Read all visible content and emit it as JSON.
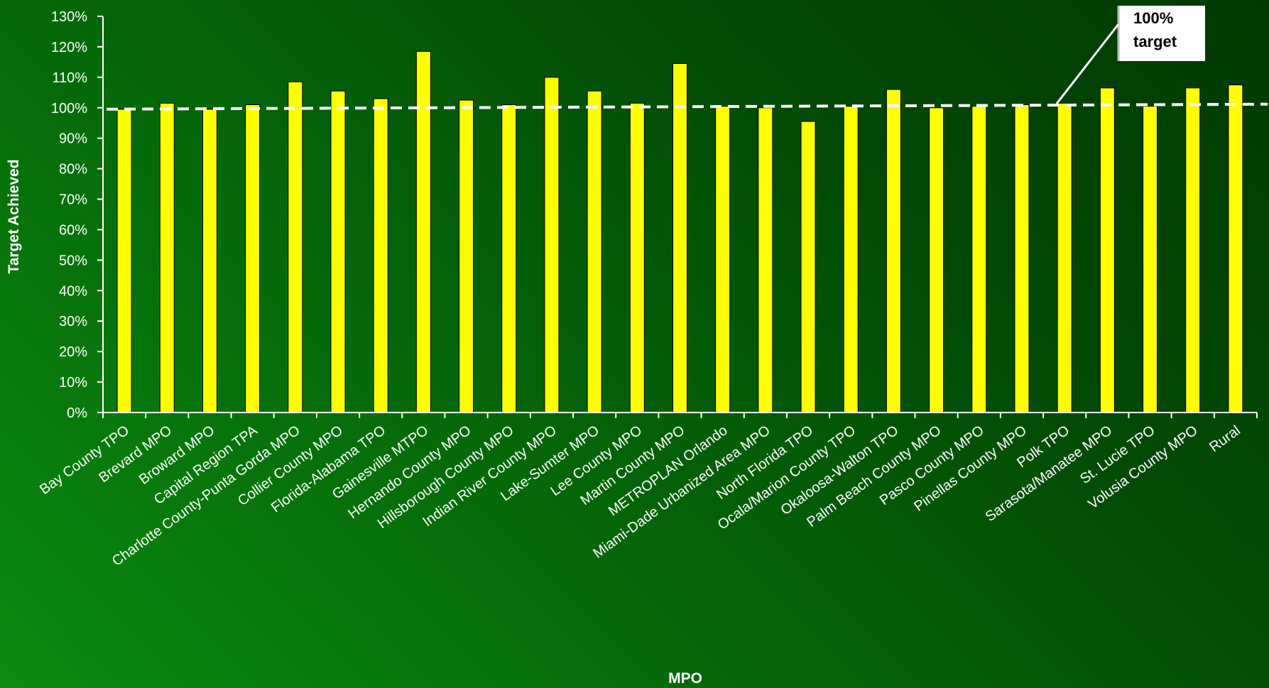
{
  "chart_data": {
    "type": "bar",
    "xlabel": "MPO",
    "ylabel": "Target Achieved",
    "ylim": [
      0,
      130
    ],
    "yticks": [
      0,
      10,
      20,
      30,
      40,
      50,
      60,
      70,
      80,
      90,
      100,
      110,
      120,
      130
    ],
    "ytick_suffix": "%",
    "bar_color": "#ffff00",
    "bar_outline_color": "#000000",
    "target_line": {
      "value": 100,
      "label_line1": "100%",
      "label_line2": "target",
      "color": "#ffffff"
    },
    "grid": false,
    "categories": [
      "Bay County TPO",
      "Brevard MPO",
      "Broward MPO",
      "Capital Region TPA",
      "Charlotte County-Punta Gorda MPO",
      "Collier County MPO",
      "Florida-Alabama TPO",
      "Gainesville MTPO",
      "Hernando County MPO",
      "Hillsborough County MPO",
      "Indian River County MPO",
      "Lake-Sumter MPO",
      "Lee County MPO",
      "Martin County MPO",
      "METROPLAN Orlando",
      "Miami-Dade Urbanized Area MPO",
      "North Florida TPO",
      "Ocala/Marion County TPO",
      "Okaloosa-Walton TPO",
      "Palm Beach County MPO",
      "Pasco County MPO",
      "Pinellas County MPO",
      "Polk TPO",
      "Sarasota/Manatee MPO",
      "St. Lucie TPO",
      "Volusia County MPO",
      "Rural"
    ],
    "values": [
      99.5,
      101.5,
      99.5,
      101,
      108.5,
      105.5,
      103,
      118.5,
      102.5,
      101,
      110,
      105.5,
      101.5,
      114.5,
      100.5,
      100,
      95.5,
      100.5,
      106,
      100,
      100.5,
      101,
      101.5,
      106.5,
      100.5,
      106.5,
      107.5
    ]
  }
}
